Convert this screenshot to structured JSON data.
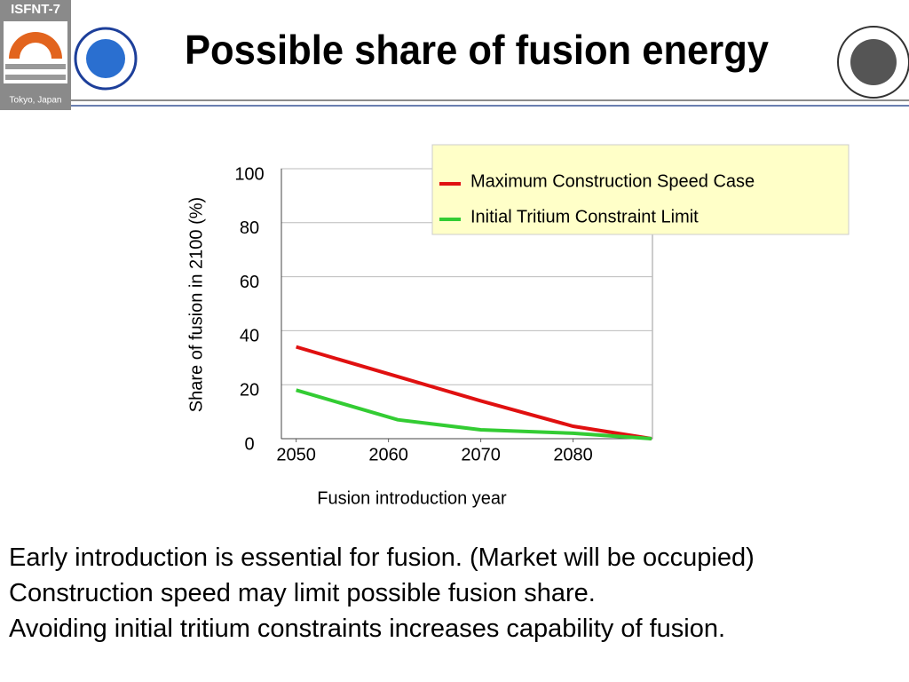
{
  "header": {
    "conference": "ISFNT-7",
    "location": "Tokyo, Japan"
  },
  "chart_data": {
    "type": "line",
    "title": "Possible share of fusion energy",
    "x_label": "Fusion introduction year",
    "y_label": "Share of fusion in 2100 (%)",
    "x": [
      2050,
      2061,
      2070,
      2080,
      2088.5
    ],
    "series": [
      {
        "name": "Maximum Construction Speed Case",
        "color": "#e01010",
        "values": [
          34,
          23,
          14,
          4.6,
          0
        ]
      },
      {
        "name": "Initial Tritium Constraint Limit",
        "color": "#33cc33",
        "values": [
          18,
          7,
          3.3,
          2,
          0
        ]
      }
    ],
    "xlim": [
      2048.4,
      2088.6
    ],
    "xticks": [
      2050,
      2060,
      2070,
      2080
    ],
    "ylim": [
      0,
      100
    ],
    "yticks": [
      0,
      20,
      40,
      60,
      80,
      100
    ],
    "grid": true,
    "legend": "upper right"
  },
  "body": {
    "lines": [
      "Early introduction is essential for fusion. (Market will be occupied)",
      "Construction speed may limit possible fusion share.",
      "Avoiding initial tritium constraints increases capability of fusion."
    ]
  }
}
